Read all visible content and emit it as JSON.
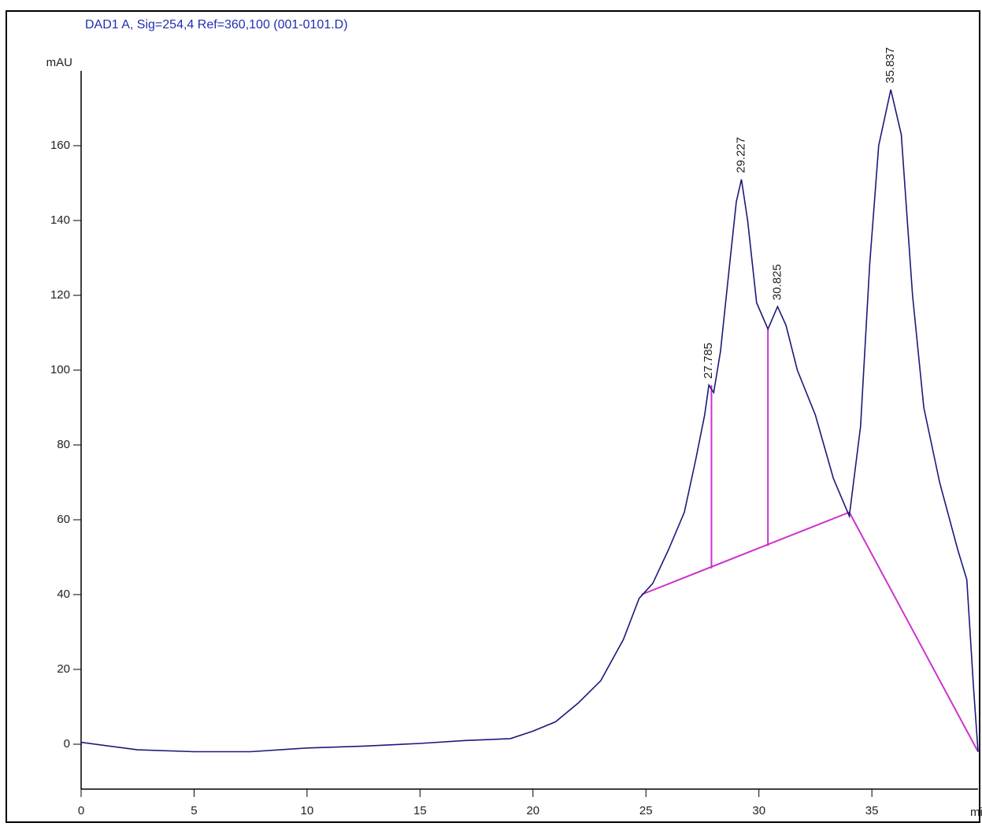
{
  "chart_data": {
    "type": "line",
    "title": "DAD1 A, Sig=254,4 Ref=360,100 (001-0101.D)",
    "y_label": "mAU",
    "x_label": "min",
    "xlim": [
      0,
      39.7
    ],
    "ylim": [
      -12,
      180
    ],
    "xticks": [
      0,
      5,
      10,
      15,
      20,
      25,
      30,
      35
    ],
    "yticks": [
      0,
      20,
      40,
      60,
      80,
      100,
      120,
      140,
      160
    ],
    "series": [
      {
        "color": "#1a1a7a",
        "x": [
          0,
          2.5,
          5,
          7.5,
          10,
          12.5,
          15,
          17,
          19,
          20,
          21,
          22,
          23,
          24,
          24.7,
          25.3,
          26,
          26.7,
          27.2,
          27.6,
          27.785,
          28.0,
          28.3,
          28.7,
          29.0,
          29.227,
          29.5,
          29.9,
          30.4,
          30.825,
          31.2,
          31.7,
          32.5,
          33.3,
          34.0,
          34.5,
          34.9,
          35.3,
          35.837,
          36.3,
          36.8,
          37.3,
          38,
          38.8,
          39.2,
          39.5,
          39.7
        ],
        "values": [
          0.5,
          -1.5,
          -2,
          -2,
          -1,
          -0.5,
          0.2,
          1,
          1.5,
          3.5,
          6,
          11,
          17,
          28,
          39,
          43,
          52,
          62,
          76,
          88,
          96,
          94,
          105,
          128,
          145,
          151,
          140,
          118,
          111,
          117,
          112,
          100,
          88,
          71,
          61,
          85,
          128,
          160,
          175,
          163,
          120,
          90,
          70,
          52,
          44,
          15,
          -2
        ]
      }
    ],
    "baseline": {
      "color": "#cc33cc",
      "x": [
        24.8,
        34.0,
        39.7
      ],
      "values": [
        40,
        62,
        -2
      ]
    },
    "drop_lines": [
      {
        "x": 27.9,
        "from": 47,
        "to": 96
      },
      {
        "x": 30.4,
        "from": 53,
        "to": 111
      }
    ],
    "peaks": [
      {
        "label": "27.785",
        "x": 27.785,
        "y": 96
      },
      {
        "label": "29.227",
        "x": 29.227,
        "y": 151
      },
      {
        "label": "30.825",
        "x": 30.825,
        "y": 117
      },
      {
        "label": "35.837",
        "x": 35.837,
        "y": 175
      }
    ]
  }
}
